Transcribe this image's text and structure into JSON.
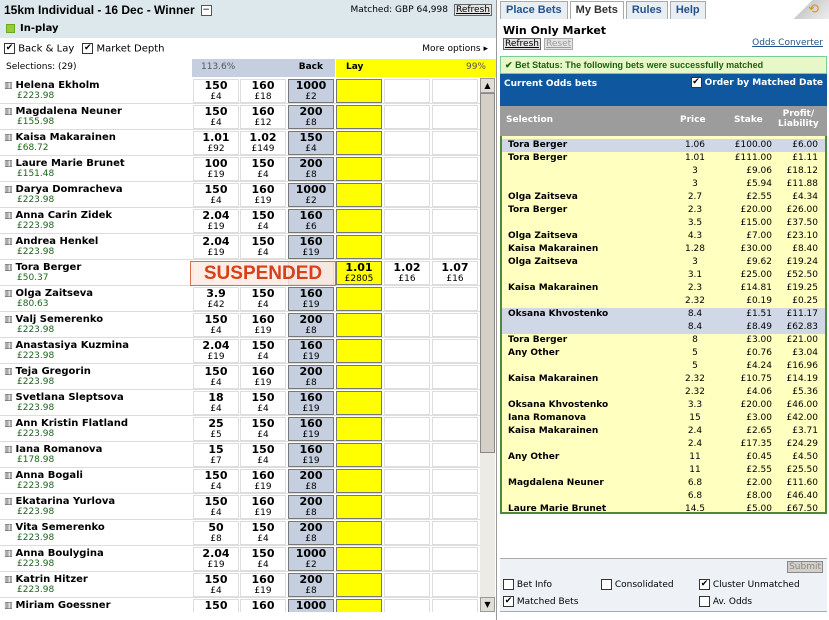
{
  "market": {
    "title": "15km Individual - 16 Dec - Winner",
    "collapse": "−",
    "matched": "Matched: GBP 64,998",
    "refresh": "Refresh",
    "inplay": "In-play",
    "back_lay": "Back & Lay",
    "market_depth": "Market Depth",
    "more_options": "More options ▸",
    "selections": "Selections:  (29)",
    "back_pct": "113.6%",
    "back_label": "Back",
    "lay_label": "Lay",
    "lay_pct": "99%",
    "suspended": "SUSPENDED"
  },
  "runners": [
    {
      "name": "Helena Ekholm",
      "pl": "£223.98",
      "back": [
        [
          "150",
          "£4"
        ],
        [
          "160",
          "£18"
        ],
        [
          "1000",
          "£2"
        ]
      ],
      "lay": [
        [
          "",
          ""
        ],
        [
          "",
          ""
        ],
        [
          "",
          ""
        ]
      ]
    },
    {
      "name": "Magdalena Neuner",
      "pl": "£155.98",
      "back": [
        [
          "150",
          "£4"
        ],
        [
          "160",
          "£12"
        ],
        [
          "200",
          "£8"
        ]
      ],
      "lay": [
        [
          "",
          ""
        ],
        [
          "",
          ""
        ],
        [
          "",
          ""
        ]
      ]
    },
    {
      "name": "Kaisa Makarainen",
      "pl": "£68.72",
      "back": [
        [
          "1.01",
          "£92"
        ],
        [
          "1.02",
          "£149"
        ],
        [
          "150",
          "£4"
        ]
      ],
      "lay": [
        [
          "",
          ""
        ],
        [
          "",
          ""
        ],
        [
          "",
          ""
        ]
      ]
    },
    {
      "name": "Laure Marie Brunet",
      "pl": "£151.48",
      "back": [
        [
          "100",
          "£19"
        ],
        [
          "150",
          "£4"
        ],
        [
          "200",
          "£8"
        ]
      ],
      "lay": [
        [
          "",
          ""
        ],
        [
          "",
          ""
        ],
        [
          "",
          ""
        ]
      ]
    },
    {
      "name": "Darya Domracheva",
      "pl": "£223.98",
      "back": [
        [
          "150",
          "£4"
        ],
        [
          "160",
          "£19"
        ],
        [
          "1000",
          "£2"
        ]
      ],
      "lay": [
        [
          "",
          ""
        ],
        [
          "",
          ""
        ],
        [
          "",
          ""
        ]
      ]
    },
    {
      "name": "Anna Carin Zidek",
      "pl": "£223.98",
      "back": [
        [
          "2.04",
          "£19"
        ],
        [
          "150",
          "£4"
        ],
        [
          "160",
          "£6"
        ]
      ],
      "lay": [
        [
          "",
          ""
        ],
        [
          "",
          ""
        ],
        [
          "",
          ""
        ]
      ]
    },
    {
      "name": "Andrea Henkel",
      "pl": "£223.98",
      "back": [
        [
          "2.04",
          "£19"
        ],
        [
          "150",
          "£4"
        ],
        [
          "160",
          "£19"
        ]
      ],
      "lay": [
        [
          "",
          ""
        ],
        [
          "",
          ""
        ],
        [
          "",
          ""
        ]
      ]
    },
    {
      "name": "Tora Berger",
      "pl": "£50.37",
      "back": [
        [
          "",
          ""
        ],
        [
          "",
          ""
        ],
        [
          "",
          ""
        ]
      ],
      "lay": [
        [
          "1.01",
          "£2805"
        ],
        [
          "1.02",
          "£16"
        ],
        [
          "1.07",
          "£16"
        ]
      ]
    },
    {
      "name": "Olga Zaitseva",
      "pl": "£80.63",
      "back": [
        [
          "3.9",
          "£42"
        ],
        [
          "150",
          "£4"
        ],
        [
          "160",
          "£19"
        ]
      ],
      "lay": [
        [
          "",
          ""
        ],
        [
          "",
          ""
        ],
        [
          "",
          ""
        ]
      ]
    },
    {
      "name": "Valj Semerenko",
      "pl": "£223.98",
      "back": [
        [
          "150",
          "£4"
        ],
        [
          "160",
          "£19"
        ],
        [
          "200",
          "£8"
        ]
      ],
      "lay": [
        [
          "",
          ""
        ],
        [
          "",
          ""
        ],
        [
          "",
          ""
        ]
      ]
    },
    {
      "name": "Anastasiya Kuzmina",
      "pl": "£223.98",
      "back": [
        [
          "2.04",
          "£19"
        ],
        [
          "150",
          "£4"
        ],
        [
          "160",
          "£19"
        ]
      ],
      "lay": [
        [
          "",
          ""
        ],
        [
          "",
          ""
        ],
        [
          "",
          ""
        ]
      ]
    },
    {
      "name": "Teja Gregorin",
      "pl": "£223.98",
      "back": [
        [
          "150",
          "£4"
        ],
        [
          "160",
          "£19"
        ],
        [
          "200",
          "£8"
        ]
      ],
      "lay": [
        [
          "",
          ""
        ],
        [
          "",
          ""
        ],
        [
          "",
          ""
        ]
      ]
    },
    {
      "name": "Svetlana Sleptsova",
      "pl": "£223.98",
      "back": [
        [
          "18",
          "£4"
        ],
        [
          "150",
          "£4"
        ],
        [
          "160",
          "£19"
        ]
      ],
      "lay": [
        [
          "",
          ""
        ],
        [
          "",
          ""
        ],
        [
          "",
          ""
        ]
      ]
    },
    {
      "name": "Ann Kristin Flatland",
      "pl": "£223.98",
      "back": [
        [
          "25",
          "£5"
        ],
        [
          "150",
          "£4"
        ],
        [
          "160",
          "£19"
        ]
      ],
      "lay": [
        [
          "",
          ""
        ],
        [
          "",
          ""
        ],
        [
          "",
          ""
        ]
      ]
    },
    {
      "name": "Iana Romanova",
      "pl": "£178.98",
      "back": [
        [
          "15",
          "£7"
        ],
        [
          "150",
          "£4"
        ],
        [
          "160",
          "£19"
        ]
      ],
      "lay": [
        [
          "",
          ""
        ],
        [
          "",
          ""
        ],
        [
          "",
          ""
        ]
      ]
    },
    {
      "name": "Anna Bogali",
      "pl": "£223.98",
      "back": [
        [
          "150",
          "£4"
        ],
        [
          "160",
          "£19"
        ],
        [
          "200",
          "£8"
        ]
      ],
      "lay": [
        [
          "",
          ""
        ],
        [
          "",
          ""
        ],
        [
          "",
          ""
        ]
      ]
    },
    {
      "name": "Ekatarina Yurlova",
      "pl": "£223.98",
      "back": [
        [
          "150",
          "£4"
        ],
        [
          "160",
          "£19"
        ],
        [
          "200",
          "£8"
        ]
      ],
      "lay": [
        [
          "",
          ""
        ],
        [
          "",
          ""
        ],
        [
          "",
          ""
        ]
      ]
    },
    {
      "name": "Vita Semerenko",
      "pl": "£223.98",
      "back": [
        [
          "50",
          "£8"
        ],
        [
          "150",
          "£4"
        ],
        [
          "200",
          "£8"
        ]
      ],
      "lay": [
        [
          "",
          ""
        ],
        [
          "",
          ""
        ],
        [
          "",
          ""
        ]
      ]
    },
    {
      "name": "Anna Boulygina",
      "pl": "£223.98",
      "back": [
        [
          "2.04",
          "£19"
        ],
        [
          "150",
          "£4"
        ],
        [
          "1000",
          "£2"
        ]
      ],
      "lay": [
        [
          "",
          ""
        ],
        [
          "",
          ""
        ],
        [
          "",
          ""
        ]
      ]
    },
    {
      "name": "Katrin Hitzer",
      "pl": "£223.98",
      "back": [
        [
          "150",
          "£4"
        ],
        [
          "160",
          "£19"
        ],
        [
          "200",
          "£8"
        ]
      ],
      "lay": [
        [
          "",
          ""
        ],
        [
          "",
          ""
        ],
        [
          "",
          ""
        ]
      ]
    },
    {
      "name": "Miriam Goessner",
      "pl": "",
      "back": [
        [
          "150",
          ""
        ],
        [
          "160",
          ""
        ],
        [
          "1000",
          ""
        ]
      ],
      "lay": [
        [
          "",
          ""
        ],
        [
          "",
          ""
        ],
        [
          "",
          ""
        ]
      ]
    }
  ],
  "panel": {
    "tabs": [
      "Place Bets",
      "My Bets",
      "Rules",
      "Help"
    ],
    "active_tab": "My Bets",
    "market": "Win Only Market",
    "refresh": "Refresh",
    "reset": "Reset",
    "odds_converter": "Odds Converter",
    "status": "Bet Status: The following bets were successfully matched",
    "current": "Current Odds bets",
    "order_by": "Order by Matched Date",
    "col_selection": "Selection",
    "col_price": "Price",
    "col_stake": "Stake",
    "col_pl1": "Profit/",
    "col_pl2": "Liability",
    "submit": "Submit",
    "bet_info": "Bet Info",
    "consolidated": "Consolidated",
    "cluster_unmatched": "Cluster Unmatched",
    "matched_bets": "Matched Bets",
    "av_odds": "Av. Odds"
  },
  "bets": [
    {
      "sel": "Tora Berger",
      "price": "1.06",
      "stake": "£100.00",
      "pl": "£6.00",
      "type": "lay"
    },
    {
      "sel": "Tora Berger",
      "price": "1.01",
      "stake": "£111.00",
      "pl": "£1.11",
      "type": "back"
    },
    {
      "sel": "",
      "price": "3",
      "stake": "£9.06",
      "pl": "£18.12",
      "type": "back"
    },
    {
      "sel": "",
      "price": "3",
      "stake": "£5.94",
      "pl": "£11.88",
      "type": "back"
    },
    {
      "sel": "Olga Zaitseva",
      "price": "2.7",
      "stake": "£2.55",
      "pl": "£4.34",
      "type": "back"
    },
    {
      "sel": "Tora Berger",
      "price": "2.3",
      "stake": "£20.00",
      "pl": "£26.00",
      "type": "back"
    },
    {
      "sel": "",
      "price": "3.5",
      "stake": "£15.00",
      "pl": "£37.50",
      "type": "back"
    },
    {
      "sel": "Olga Zaitseva",
      "price": "4.3",
      "stake": "£7.00",
      "pl": "£23.10",
      "type": "back"
    },
    {
      "sel": "Kaisa Makarainen",
      "price": "1.28",
      "stake": "£30.00",
      "pl": "£8.40",
      "type": "back"
    },
    {
      "sel": "Olga Zaitseva",
      "price": "3",
      "stake": "£9.62",
      "pl": "£19.24",
      "type": "back"
    },
    {
      "sel": "",
      "price": "3.1",
      "stake": "£25.00",
      "pl": "£52.50",
      "type": "back"
    },
    {
      "sel": "Kaisa Makarainen",
      "price": "2.3",
      "stake": "£14.81",
      "pl": "£19.25",
      "type": "back"
    },
    {
      "sel": "",
      "price": "2.32",
      "stake": "£0.19",
      "pl": "£0.25",
      "type": "back"
    },
    {
      "sel": "Oksana Khvostenko",
      "price": "8.4",
      "stake": "£1.51",
      "pl": "£11.17",
      "type": "lay"
    },
    {
      "sel": "",
      "price": "8.4",
      "stake": "£8.49",
      "pl": "£62.83",
      "type": "lay"
    },
    {
      "sel": "Tora Berger",
      "price": "8",
      "stake": "£3.00",
      "pl": "£21.00",
      "type": "back"
    },
    {
      "sel": "Any Other",
      "price": "5",
      "stake": "£0.76",
      "pl": "£3.04",
      "type": "back"
    },
    {
      "sel": "",
      "price": "5",
      "stake": "£4.24",
      "pl": "£16.96",
      "type": "back"
    },
    {
      "sel": "Kaisa Makarainen",
      "price": "2.32",
      "stake": "£10.75",
      "pl": "£14.19",
      "type": "back"
    },
    {
      "sel": "",
      "price": "2.32",
      "stake": "£4.06",
      "pl": "£5.36",
      "type": "back"
    },
    {
      "sel": "Oksana Khvostenko",
      "price": "3.3",
      "stake": "£20.00",
      "pl": "£46.00",
      "type": "back"
    },
    {
      "sel": "Iana Romanova",
      "price": "15",
      "stake": "£3.00",
      "pl": "£42.00",
      "type": "back"
    },
    {
      "sel": "Kaisa Makarainen",
      "price": "2.4",
      "stake": "£2.65",
      "pl": "£3.71",
      "type": "back"
    },
    {
      "sel": "",
      "price": "2.4",
      "stake": "£17.35",
      "pl": "£24.29",
      "type": "back"
    },
    {
      "sel": "Any Other",
      "price": "11",
      "stake": "£0.45",
      "pl": "£4.50",
      "type": "back"
    },
    {
      "sel": "",
      "price": "11",
      "stake": "£2.55",
      "pl": "£25.50",
      "type": "back"
    },
    {
      "sel": "Magdalena Neuner",
      "price": "6.8",
      "stake": "£2.00",
      "pl": "£11.60",
      "type": "back"
    },
    {
      "sel": "",
      "price": "6.8",
      "stake": "£8.00",
      "pl": "£46.40",
      "type": "back"
    },
    {
      "sel": "Laure Marie Brunet",
      "price": "14.5",
      "stake": "£5.00",
      "pl": "£67.50",
      "type": "back"
    }
  ],
  "colors": {
    "back": "#c5cfe0",
    "lay": "#ffff00",
    "header": "#dce8ec",
    "current_bar": "#0f58a0",
    "bets_bg": "#ffffc0",
    "suspended": "#d8401a"
  }
}
